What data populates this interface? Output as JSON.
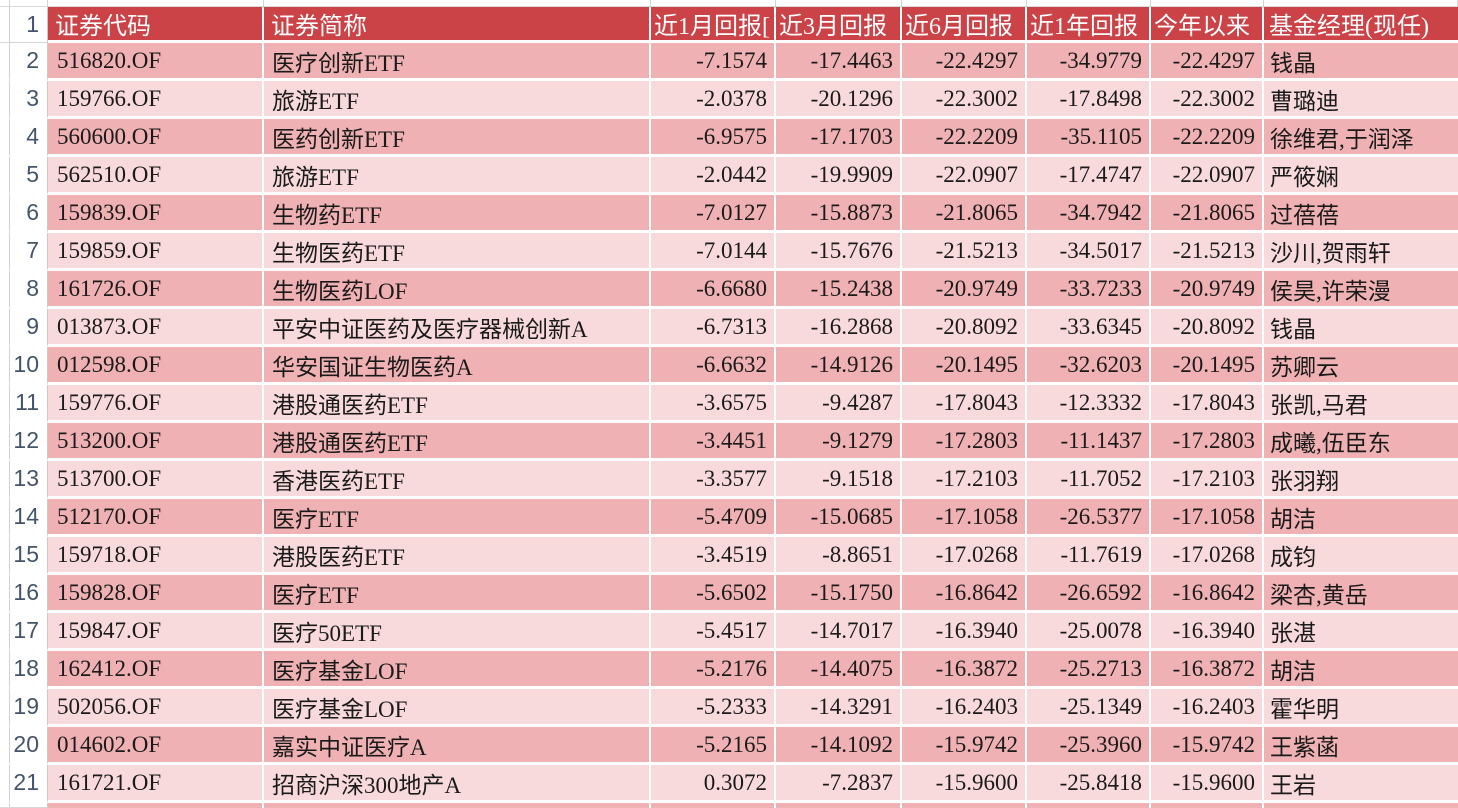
{
  "app": {
    "kind": "spreadsheet",
    "description": "Fund returns table"
  },
  "colors": {
    "header_bg": "#cb4247",
    "header_text": "#ffffff",
    "row_dark": "#efb1b3",
    "row_light": "#f8dadc",
    "cell_text": "#1a1a1a",
    "gutter_text": "#44546a",
    "grid_line": "#d4d4d4",
    "cell_gap": "#ffffff"
  },
  "table": {
    "header_row_number": "1",
    "columns": [
      "证券代码",
      "证券简称",
      "近1月回报[",
      "近3月回报",
      "近6月回报",
      "近1年回报",
      "今年以来",
      "基金经理(现任)"
    ],
    "rows": [
      {
        "n": "2",
        "code": "516820.OF",
        "name": "医疗创新ETF",
        "r1m": "-7.1574",
        "r3m": "-17.4463",
        "r6m": "-22.4297",
        "r1y": "-34.9779",
        "ytd": "-22.4297",
        "manager": "钱晶"
      },
      {
        "n": "3",
        "code": "159766.OF",
        "name": "旅游ETF",
        "r1m": "-2.0378",
        "r3m": "-20.1296",
        "r6m": "-22.3002",
        "r1y": "-17.8498",
        "ytd": "-22.3002",
        "manager": "曹璐迪"
      },
      {
        "n": "4",
        "code": "560600.OF",
        "name": "医药创新ETF",
        "r1m": "-6.9575",
        "r3m": "-17.1703",
        "r6m": "-22.2209",
        "r1y": "-35.1105",
        "ytd": "-22.2209",
        "manager": "徐维君,于润泽"
      },
      {
        "n": "5",
        "code": "562510.OF",
        "name": "旅游ETF",
        "r1m": "-2.0442",
        "r3m": "-19.9909",
        "r6m": "-22.0907",
        "r1y": "-17.4747",
        "ytd": "-22.0907",
        "manager": "严筱娴"
      },
      {
        "n": "6",
        "code": "159839.OF",
        "name": "生物药ETF",
        "r1m": "-7.0127",
        "r3m": "-15.8873",
        "r6m": "-21.8065",
        "r1y": "-34.7942",
        "ytd": "-21.8065",
        "manager": "过蓓蓓"
      },
      {
        "n": "7",
        "code": "159859.OF",
        "name": "生物医药ETF",
        "r1m": "-7.0144",
        "r3m": "-15.7676",
        "r6m": "-21.5213",
        "r1y": "-34.5017",
        "ytd": "-21.5213",
        "manager": "沙川,贺雨轩"
      },
      {
        "n": "8",
        "code": "161726.OF",
        "name": "生物医药LOF",
        "r1m": "-6.6680",
        "r3m": "-15.2438",
        "r6m": "-20.9749",
        "r1y": "-33.7233",
        "ytd": "-20.9749",
        "manager": "侯昊,许荣漫"
      },
      {
        "n": "9",
        "code": "013873.OF",
        "name": "平安中证医药及医疗器械创新A",
        "r1m": "-6.7313",
        "r3m": "-16.2868",
        "r6m": "-20.8092",
        "r1y": "-33.6345",
        "ytd": "-20.8092",
        "manager": "钱晶"
      },
      {
        "n": "10",
        "code": "012598.OF",
        "name": "华安国证生物医药A",
        "r1m": "-6.6632",
        "r3m": "-14.9126",
        "r6m": "-20.1495",
        "r1y": "-32.6203",
        "ytd": "-20.1495",
        "manager": "苏卿云"
      },
      {
        "n": "11",
        "code": "159776.OF",
        "name": "港股通医药ETF",
        "r1m": "-3.6575",
        "r3m": "-9.4287",
        "r6m": "-17.8043",
        "r1y": "-12.3332",
        "ytd": "-17.8043",
        "manager": "张凯,马君"
      },
      {
        "n": "12",
        "code": "513200.OF",
        "name": "港股通医药ETF",
        "r1m": "-3.4451",
        "r3m": "-9.1279",
        "r6m": "-17.2803",
        "r1y": "-11.1437",
        "ytd": "-17.2803",
        "manager": "成曦,伍臣东"
      },
      {
        "n": "13",
        "code": "513700.OF",
        "name": "香港医药ETF",
        "r1m": "-3.3577",
        "r3m": "-9.1518",
        "r6m": "-17.2103",
        "r1y": "-11.7052",
        "ytd": "-17.2103",
        "manager": "张羽翔"
      },
      {
        "n": "14",
        "code": "512170.OF",
        "name": "医疗ETF",
        "r1m": "-5.4709",
        "r3m": "-15.0685",
        "r6m": "-17.1058",
        "r1y": "-26.5377",
        "ytd": "-17.1058",
        "manager": "胡洁"
      },
      {
        "n": "15",
        "code": "159718.OF",
        "name": "港股医药ETF",
        "r1m": "-3.4519",
        "r3m": "-8.8651",
        "r6m": "-17.0268",
        "r1y": "-11.7619",
        "ytd": "-17.0268",
        "manager": "成钧"
      },
      {
        "n": "16",
        "code": "159828.OF",
        "name": "医疗ETF",
        "r1m": "-5.6502",
        "r3m": "-15.1750",
        "r6m": "-16.8642",
        "r1y": "-26.6592",
        "ytd": "-16.8642",
        "manager": "梁杏,黄岳"
      },
      {
        "n": "17",
        "code": "159847.OF",
        "name": "医疗50ETF",
        "r1m": "-5.4517",
        "r3m": "-14.7017",
        "r6m": "-16.3940",
        "r1y": "-25.0078",
        "ytd": "-16.3940",
        "manager": "张湛"
      },
      {
        "n": "18",
        "code": "162412.OF",
        "name": "医疗基金LOF",
        "r1m": "-5.2176",
        "r3m": "-14.4075",
        "r6m": "-16.3872",
        "r1y": "-25.2713",
        "ytd": "-16.3872",
        "manager": "胡洁"
      },
      {
        "n": "19",
        "code": "502056.OF",
        "name": "医疗基金LOF",
        "r1m": "-5.2333",
        "r3m": "-14.3291",
        "r6m": "-16.2403",
        "r1y": "-25.1349",
        "ytd": "-16.2403",
        "manager": "霍华明"
      },
      {
        "n": "20",
        "code": "014602.OF",
        "name": "嘉实中证医疗A",
        "r1m": "-5.2165",
        "r3m": "-14.1092",
        "r6m": "-15.9742",
        "r1y": "-25.3960",
        "ytd": "-15.9742",
        "manager": "王紫菡"
      },
      {
        "n": "21",
        "code": "161721.OF",
        "name": "招商沪深300地产A",
        "r1m": "0.3072",
        "r3m": "-7.2837",
        "r6m": "-15.9600",
        "r1y": "-25.8418",
        "ytd": "-15.9600",
        "manager": "王岩"
      }
    ]
  }
}
